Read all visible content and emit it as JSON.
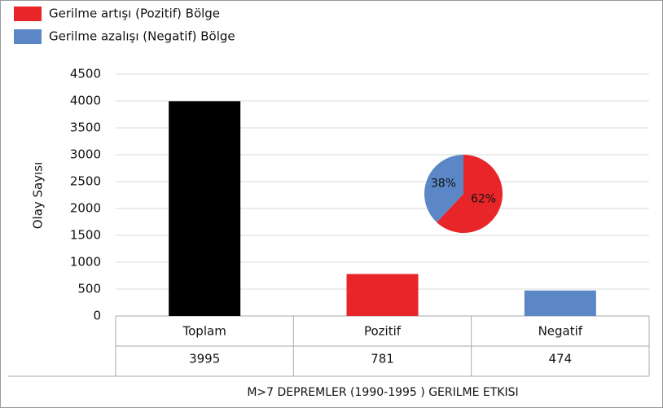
{
  "chart_data": [
    {
      "type": "bar",
      "categories": [
        "Toplam",
        "Pozitif",
        "Negatif"
      ],
      "values": [
        3995,
        781,
        474
      ],
      "colors": [
        "#000000",
        "#e8262a",
        "#5b87c6"
      ],
      "ylim": [
        0,
        4500
      ],
      "yticks": [
        0,
        500,
        1000,
        1500,
        2000,
        2500,
        3000,
        3500,
        4000,
        4500
      ],
      "grid": true,
      "ylabel": "Olay Sayısı",
      "xlabel": "M>7 DEPREMLER  (1990-1995 ) GERILME ETKISI"
    },
    {
      "type": "pie",
      "categories": [
        "Gerilme artışı (Pozitif) Bölge",
        "Gerilme azalışı (Negatif) Bölge"
      ],
      "values": [
        62,
        38
      ],
      "value_labels": [
        "62%",
        "38%"
      ],
      "colors": [
        "#e8262a",
        "#5b87c6"
      ],
      "legend": "top-left"
    }
  ]
}
